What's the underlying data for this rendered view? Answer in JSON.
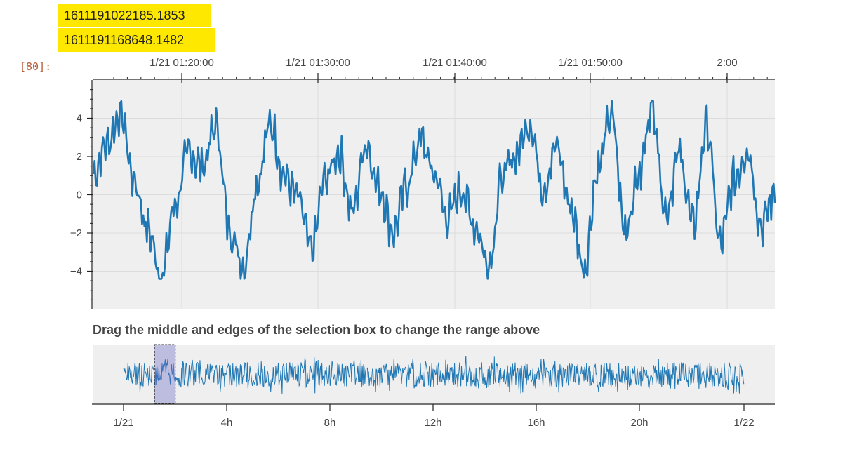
{
  "output": {
    "timestamps": [
      "1611191022185.1853",
      "1611191168648.1482"
    ],
    "prompt_label": "[80]:"
  },
  "caption": "Drag the middle and edges of the selection box to change the range above",
  "colors": {
    "line": "#1f77b4",
    "plot_bg": "#efefef",
    "highlight": "#ffe800",
    "prompt": "#b85c38",
    "selection": "#b8b8e6"
  },
  "chart_data": [
    {
      "type": "line",
      "title": "",
      "xlabel": "",
      "ylabel": "",
      "x_axis": "datetime (top)",
      "x_tick_labels": [
        "1/21 01:20:00",
        "1/21 01:30:00",
        "1/21 01:40:00",
        "1/21 01:50:00",
        "2:00"
      ],
      "y_tick_labels": [
        "4",
        "2",
        "0",
        "−2",
        "−4"
      ],
      "ylim": [
        -6,
        6
      ],
      "grid": true,
      "x": [
        0.0,
        0.02,
        0.04,
        0.06,
        0.08,
        0.1,
        0.12,
        0.14,
        0.16,
        0.18,
        0.2,
        0.22,
        0.24,
        0.26,
        0.28,
        0.3,
        0.32,
        0.34,
        0.36,
        0.38,
        0.4,
        0.42,
        0.44,
        0.46,
        0.48,
        0.5,
        0.52,
        0.54,
        0.56,
        0.58,
        0.6,
        0.62,
        0.64,
        0.66,
        0.68,
        0.7,
        0.72,
        0.74,
        0.76,
        0.78,
        0.8,
        0.82,
        0.84,
        0.86,
        0.88,
        0.9,
        0.92,
        0.94,
        0.96,
        0.98,
        1.0
      ],
      "values": [
        1.1,
        2.7,
        4.3,
        0.7,
        -1.8,
        -4.3,
        -0.5,
        2.2,
        1.5,
        3.6,
        -1.8,
        -3.8,
        0.6,
        3.7,
        1.0,
        -0.2,
        -2.9,
        0.8,
        2.2,
        -0.9,
        2.7,
        0.3,
        -1.9,
        0.5,
        2.9,
        1.1,
        -1.2,
        0.3,
        -1.6,
        -3.6,
        0.9,
        2.1,
        3.8,
        0.4,
        2.5,
        -0.6,
        -3.8,
        1.3,
        4.2,
        -1.8,
        0.9,
        4.8,
        -0.8,
        2.1,
        -1.6,
        3.6,
        -2.6,
        0.8,
        2.4,
        -1.6,
        0.0
      ]
    },
    {
      "type": "line",
      "title": "",
      "xlabel": "",
      "ylabel": "",
      "x_axis": "datetime (bottom)",
      "x_tick_labels": [
        "1/21",
        "4h",
        "8h",
        "12h",
        "16h",
        "20h",
        "1/22"
      ],
      "selection_range_hours": [
        1.2,
        2.0
      ]
    }
  ]
}
